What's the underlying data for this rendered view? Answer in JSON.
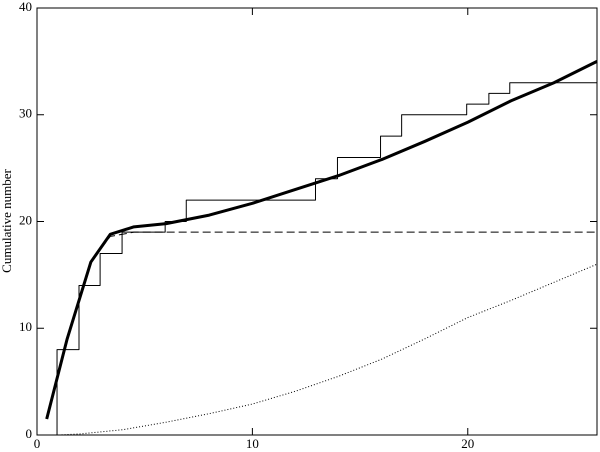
{
  "chart_data": {
    "type": "line",
    "ylabel": "Cumulative number",
    "xlim": [
      0,
      26
    ],
    "xticks": [
      0,
      10,
      20
    ],
    "ylim": [
      0,
      40
    ],
    "yticks": [
      0,
      10,
      20,
      30,
      40
    ],
    "series": [
      {
        "color": "#000000",
        "style": "step",
        "width": 1,
        "x": [
          0.93,
          0.93,
          1.95,
          2.93,
          3.95,
          5.95,
          6.93,
          12.93,
          13.95,
          15.95,
          16.93,
          19.95,
          20.98,
          21.95,
          26
        ],
        "values": [
          0,
          8,
          14,
          17,
          19,
          20,
          22,
          24,
          26,
          28,
          30,
          31,
          32,
          33,
          33
        ]
      },
      {
        "color": "#000000",
        "style": "solid",
        "width": 3,
        "x": [
          0.45,
          1.4,
          2.5,
          3.4,
          4.5,
          6,
          8,
          10,
          12,
          14,
          16,
          18,
          20,
          22,
          24,
          26
        ],
        "values": [
          1.5,
          9,
          16.2,
          18.8,
          19.5,
          19.8,
          20.6,
          21.7,
          23,
          24.3,
          25.8,
          27.5,
          29.3,
          31.3,
          33,
          35
        ]
      },
      {
        "color": "#000000",
        "style": "dashed",
        "width": 1,
        "x": [
          0.45,
          1.4,
          2.5,
          3.4,
          4.5,
          26
        ],
        "values": [
          1.5,
          9,
          16.2,
          18.6,
          19,
          19
        ]
      },
      {
        "color": "#000000",
        "style": "dotted",
        "width": 1,
        "x": [
          1,
          2,
          4,
          6,
          8,
          10,
          12,
          14,
          16,
          18,
          20,
          22,
          24,
          26
        ],
        "values": [
          0,
          0.1,
          0.5,
          1.2,
          2,
          2.9,
          4.1,
          5.5,
          7.1,
          9,
          11,
          12.6,
          14.3,
          16
        ]
      }
    ]
  }
}
